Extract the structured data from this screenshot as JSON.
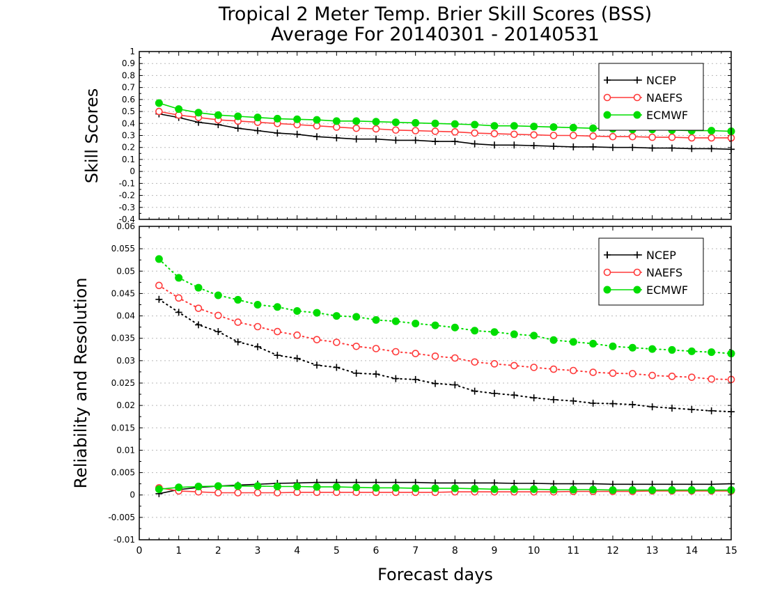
{
  "title_line1": "Tropical 2 Meter Temp. Brier Skill Scores (BSS)",
  "title_line2": "Average For 20140301 - 20140531",
  "xlabel": "Forecast days",
  "colors": {
    "NCEP": "#000000",
    "NAEFS": "#ff3a3a",
    "ECMWF": "#00dd00"
  },
  "chart_data": [
    {
      "type": "line",
      "ylabel": "Skill Scores",
      "xlim": [
        0,
        15
      ],
      "ylim": [
        -0.4,
        1
      ],
      "yticks": [
        "-0.4",
        "-0.3",
        "-0.2",
        "-0.1",
        "0",
        "0.1",
        "0.2",
        "0.3",
        "0.4",
        "0.5",
        "0.6",
        "0.7",
        "0.8",
        "0.9",
        "1"
      ],
      "grid": true,
      "legend": [
        "NCEP",
        "NAEFS",
        "ECMWF"
      ],
      "legend_position": "top-right",
      "x": [
        0.5,
        1,
        1.5,
        2,
        2.5,
        3,
        3.5,
        4,
        4.5,
        5,
        5.5,
        6,
        6.5,
        7,
        7.5,
        8,
        8.5,
        9,
        9.5,
        10,
        10.5,
        11,
        11.5,
        12,
        12.5,
        13,
        13.5,
        14,
        14.5,
        15
      ],
      "series": [
        {
          "name": "NCEP",
          "marker": "plus",
          "style": "solid",
          "values": [
            0.48,
            0.45,
            0.41,
            0.39,
            0.36,
            0.34,
            0.32,
            0.31,
            0.29,
            0.28,
            0.27,
            0.27,
            0.26,
            0.26,
            0.25,
            0.25,
            0.23,
            0.22,
            0.22,
            0.215,
            0.21,
            0.205,
            0.205,
            0.2,
            0.2,
            0.195,
            0.195,
            0.19,
            0.19,
            0.185
          ]
        },
        {
          "name": "NAEFS",
          "marker": "open-circle",
          "style": "solid",
          "values": [
            0.5,
            0.47,
            0.45,
            0.43,
            0.42,
            0.41,
            0.4,
            0.39,
            0.38,
            0.37,
            0.36,
            0.355,
            0.345,
            0.34,
            0.335,
            0.33,
            0.32,
            0.315,
            0.31,
            0.305,
            0.3,
            0.3,
            0.295,
            0.29,
            0.29,
            0.285,
            0.285,
            0.28,
            0.28,
            0.28
          ]
        },
        {
          "name": "ECMWF",
          "marker": "filled-circle",
          "style": "solid",
          "values": [
            0.57,
            0.52,
            0.49,
            0.47,
            0.46,
            0.45,
            0.44,
            0.435,
            0.43,
            0.42,
            0.42,
            0.415,
            0.41,
            0.405,
            0.4,
            0.395,
            0.39,
            0.38,
            0.38,
            0.375,
            0.37,
            0.365,
            0.36,
            0.355,
            0.35,
            0.35,
            0.345,
            0.34,
            0.34,
            0.335
          ]
        }
      ]
    },
    {
      "type": "line",
      "ylabel": "Reliability and Resolution",
      "xlim": [
        0,
        15
      ],
      "ylim": [
        -0.01,
        0.06
      ],
      "yticks": [
        "-0.01",
        "-0.005",
        "0",
        "0.005",
        "0.01",
        "0.015",
        "0.02",
        "0.025",
        "0.03",
        "0.035",
        "0.04",
        "0.045",
        "0.05",
        "0.055",
        "0.06"
      ],
      "xticks": [
        "0",
        "1",
        "2",
        "3",
        "4",
        "5",
        "6",
        "7",
        "8",
        "9",
        "10",
        "11",
        "12",
        "13",
        "14",
        "15"
      ],
      "grid": true,
      "legend": [
        "NCEP",
        "NAEFS",
        "ECMWF"
      ],
      "legend_position": "top-right",
      "x": [
        0.5,
        1,
        1.5,
        2,
        2.5,
        3,
        3.5,
        4,
        4.5,
        5,
        5.5,
        6,
        6.5,
        7,
        7.5,
        8,
        8.5,
        9,
        9.5,
        10,
        10.5,
        11,
        11.5,
        12,
        12.5,
        13,
        13.5,
        14,
        14.5,
        15
      ],
      "series": [
        {
          "name": "NCEP",
          "marker": "plus",
          "style": "dotted",
          "values": [
            0.0437,
            0.0408,
            0.038,
            0.0365,
            0.0342,
            0.0331,
            0.0312,
            0.0305,
            0.029,
            0.0285,
            0.0272,
            0.027,
            0.026,
            0.0258,
            0.0249,
            0.0246,
            0.0232,
            0.0227,
            0.0223,
            0.0217,
            0.0213,
            0.021,
            0.0205,
            0.0204,
            0.0202,
            0.0197,
            0.0194,
            0.0191,
            0.0188,
            0.0186
          ]
        },
        {
          "name": "NAEFS",
          "marker": "open-circle",
          "style": "dotted",
          "values": [
            0.0468,
            0.044,
            0.0417,
            0.0401,
            0.0386,
            0.0376,
            0.0365,
            0.0357,
            0.0347,
            0.0341,
            0.0332,
            0.0327,
            0.032,
            0.0316,
            0.031,
            0.0306,
            0.0297,
            0.0293,
            0.0289,
            0.0285,
            0.0281,
            0.0278,
            0.0274,
            0.0272,
            0.0271,
            0.0267,
            0.0265,
            0.0263,
            0.0259,
            0.0258
          ]
        },
        {
          "name": "ECMWF",
          "marker": "filled-circle",
          "style": "dotted",
          "values": [
            0.0527,
            0.0485,
            0.0463,
            0.0446,
            0.0436,
            0.0425,
            0.042,
            0.0411,
            0.0407,
            0.04,
            0.0398,
            0.0391,
            0.0388,
            0.0383,
            0.0379,
            0.0374,
            0.0367,
            0.0364,
            0.0359,
            0.0356,
            0.0346,
            0.0342,
            0.0338,
            0.0332,
            0.0329,
            0.0326,
            0.0324,
            0.0321,
            0.0319,
            0.0316
          ]
        },
        {
          "name": "NCEP",
          "marker": "plus",
          "style": "solid",
          "values": [
            0.0003,
            0.0012,
            0.0017,
            0.002,
            0.0022,
            0.0024,
            0.0026,
            0.0027,
            0.0028,
            0.0028,
            0.0028,
            0.0028,
            0.0028,
            0.0028,
            0.0027,
            0.0027,
            0.0027,
            0.0027,
            0.0026,
            0.0026,
            0.0025,
            0.0025,
            0.0025,
            0.0024,
            0.0024,
            0.0024,
            0.0024,
            0.0024,
            0.0024,
            0.0025
          ]
        },
        {
          "name": "NAEFS",
          "marker": "open-circle",
          "style": "solid",
          "values": [
            0.0016,
            0.0009,
            0.0007,
            0.0005,
            0.0005,
            0.0005,
            0.0005,
            0.0006,
            0.0006,
            0.0006,
            0.0006,
            0.0006,
            0.0006,
            0.0006,
            0.0006,
            0.0007,
            0.0007,
            0.0007,
            0.0007,
            0.0007,
            0.0007,
            0.0008,
            0.0008,
            0.0008,
            0.0008,
            0.0009,
            0.0009,
            0.0009,
            0.0009,
            0.0009
          ]
        },
        {
          "name": "ECMWF",
          "marker": "filled-circle",
          "style": "solid",
          "values": [
            0.0013,
            0.0017,
            0.0019,
            0.002,
            0.002,
            0.002,
            0.0019,
            0.0019,
            0.0018,
            0.0018,
            0.0017,
            0.0016,
            0.0016,
            0.0015,
            0.0015,
            0.0015,
            0.0014,
            0.0013,
            0.0013,
            0.0013,
            0.0012,
            0.0012,
            0.0012,
            0.0011,
            0.0011,
            0.0011,
            0.0011,
            0.0011,
            0.0011,
            0.0011
          ]
        }
      ]
    }
  ]
}
